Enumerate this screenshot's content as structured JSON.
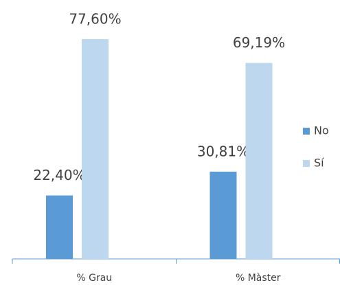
{
  "chart_data": {
    "type": "bar",
    "categories": [
      "% Grau",
      "% Màster"
    ],
    "series": [
      {
        "name": "No",
        "color": "#5b9bd5",
        "values": [
          22.4,
          30.81
        ],
        "value_labels": [
          "22,40%",
          "30,81%"
        ]
      },
      {
        "name": "Sí",
        "color": "#bdd7ee",
        "values": [
          77.6,
          69.19
        ],
        "value_labels": [
          "77,60%",
          "69,19%"
        ]
      }
    ],
    "legend": "right"
  }
}
